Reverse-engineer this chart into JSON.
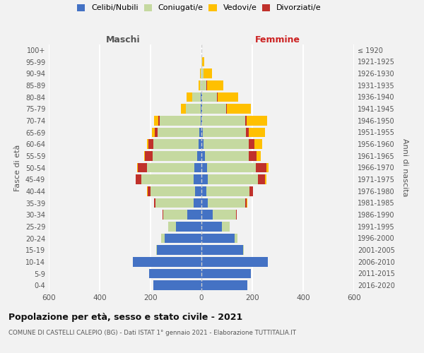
{
  "age_groups": [
    "0-4",
    "5-9",
    "10-14",
    "15-19",
    "20-24",
    "25-29",
    "30-34",
    "35-39",
    "40-44",
    "45-49",
    "50-54",
    "55-59",
    "60-64",
    "65-69",
    "70-74",
    "75-79",
    "80-84",
    "85-89",
    "90-94",
    "95-99",
    "100+"
  ],
  "birth_years": [
    "2016-2020",
    "2011-2015",
    "2006-2010",
    "2001-2005",
    "1996-2000",
    "1991-1995",
    "1986-1990",
    "1981-1985",
    "1976-1980",
    "1971-1975",
    "1966-1970",
    "1961-1965",
    "1956-1960",
    "1951-1955",
    "1946-1950",
    "1941-1945",
    "1936-1940",
    "1931-1935",
    "1926-1930",
    "1921-1925",
    "≤ 1920"
  ],
  "colors": {
    "celibi": "#4472c4",
    "coniugati": "#c5d9a0",
    "vedovi": "#ffc000",
    "divorziati": "#c0312b",
    "background": "#f2f2f2",
    "grid": "#ffffff",
    "dashed_line": "#cccccc"
  },
  "males": {
    "celibi": [
      190,
      205,
      270,
      175,
      145,
      100,
      55,
      30,
      25,
      30,
      28,
      18,
      10,
      7,
      4,
      2,
      2,
      1,
      1,
      0,
      0
    ],
    "coniugati": [
      0,
      0,
      0,
      3,
      12,
      30,
      95,
      150,
      175,
      205,
      185,
      175,
      180,
      165,
      160,
      60,
      35,
      5,
      2,
      0,
      0
    ],
    "vedovi": [
      0,
      0,
      0,
      0,
      0,
      0,
      1,
      1,
      1,
      2,
      3,
      5,
      6,
      12,
      16,
      18,
      22,
      6,
      2,
      0,
      0
    ],
    "divorziati": [
      0,
      0,
      0,
      0,
      0,
      0,
      2,
      6,
      12,
      22,
      38,
      28,
      18,
      10,
      6,
      0,
      0,
      0,
      0,
      0,
      0
    ]
  },
  "females": {
    "nubili": [
      180,
      195,
      260,
      165,
      130,
      80,
      45,
      25,
      20,
      24,
      22,
      14,
      8,
      5,
      3,
      2,
      2,
      1,
      1,
      0,
      0
    ],
    "coniugate": [
      0,
      0,
      0,
      2,
      12,
      32,
      92,
      147,
      170,
      198,
      192,
      172,
      178,
      170,
      170,
      95,
      60,
      18,
      6,
      2,
      0
    ],
    "vedove": [
      0,
      0,
      0,
      0,
      0,
      0,
      1,
      2,
      2,
      5,
      8,
      16,
      32,
      62,
      80,
      95,
      80,
      65,
      35,
      8,
      1
    ],
    "divorziate": [
      0,
      0,
      0,
      0,
      0,
      0,
      2,
      6,
      12,
      28,
      42,
      32,
      22,
      12,
      6,
      3,
      2,
      2,
      0,
      0,
      0
    ]
  },
  "xlim": 600,
  "title": "Popolazione per età, sesso e stato civile - 2021",
  "subtitle": "COMUNE DI CASTELLI CALEPIO (BG) - Dati ISTAT 1° gennaio 2021 - Elaborazione TUTTITALIA.IT",
  "xlabel_left": "Maschi",
  "xlabel_right": "Femmine",
  "ylabel_left": "Fasce di età",
  "ylabel_right": "Anni di nascita"
}
